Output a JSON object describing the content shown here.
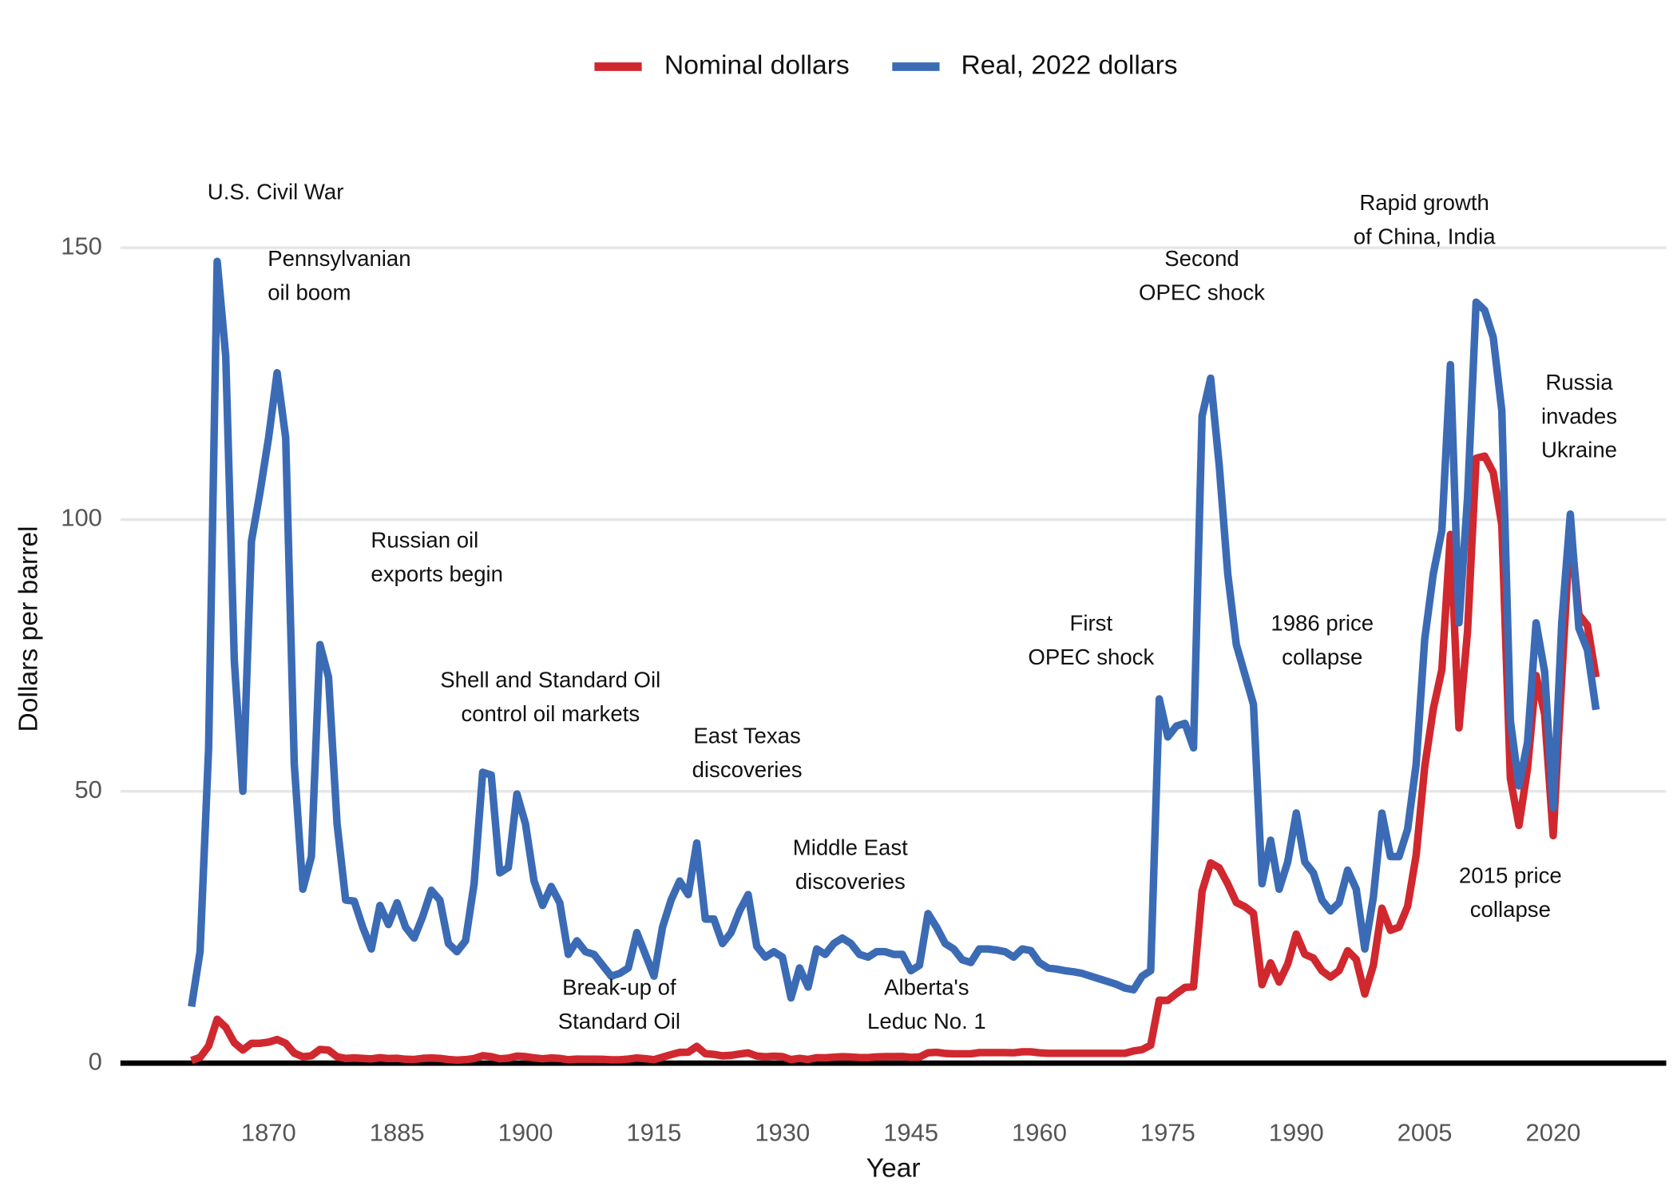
{
  "chart_data": {
    "type": "line",
    "x_label": "Year",
    "y_label": "Dollars per barrel",
    "legend": "top",
    "grid": true,
    "xlim": [
      1852.7,
      2033.2
    ],
    "ylim": [
      -3,
      158
    ],
    "xticks": [
      1870,
      1885,
      1900,
      1915,
      1930,
      1945,
      1960,
      1975,
      1990,
      2005,
      2020
    ],
    "yticks": [
      0,
      50,
      100,
      150
    ],
    "x": [
      1861,
      1862,
      1863,
      1864,
      1865,
      1866,
      1867,
      1868,
      1869,
      1870,
      1871,
      1872,
      1873,
      1874,
      1875,
      1876,
      1877,
      1878,
      1879,
      1880,
      1881,
      1882,
      1883,
      1884,
      1885,
      1886,
      1887,
      1888,
      1889,
      1890,
      1891,
      1892,
      1893,
      1894,
      1895,
      1896,
      1897,
      1898,
      1899,
      1900,
      1901,
      1902,
      1903,
      1904,
      1905,
      1906,
      1907,
      1908,
      1909,
      1910,
      1911,
      1912,
      1913,
      1914,
      1915,
      1916,
      1917,
      1918,
      1919,
      1920,
      1921,
      1922,
      1923,
      1924,
      1925,
      1926,
      1927,
      1928,
      1929,
      1930,
      1931,
      1932,
      1933,
      1934,
      1935,
      1936,
      1937,
      1938,
      1939,
      1940,
      1941,
      1942,
      1943,
      1944,
      1945,
      1946,
      1947,
      1948,
      1949,
      1950,
      1951,
      1952,
      1953,
      1954,
      1955,
      1956,
      1957,
      1958,
      1959,
      1960,
      1961,
      1962,
      1963,
      1964,
      1965,
      1966,
      1967,
      1968,
      1969,
      1970,
      1971,
      1972,
      1973,
      1974,
      1975,
      1976,
      1977,
      1978,
      1979,
      1980,
      1981,
      1982,
      1983,
      1984,
      1985,
      1986,
      1987,
      1988,
      1989,
      1990,
      1991,
      1992,
      1993,
      1994,
      1995,
      1996,
      1997,
      1998,
      1999,
      2000,
      2001,
      2002,
      2003,
      2004,
      2005,
      2006,
      2007,
      2008,
      2009,
      2010,
      2011,
      2012,
      2013,
      2014,
      2015,
      2016,
      2017,
      2018,
      2019,
      2020,
      2021,
      2022,
      2023,
      2024,
      2025
    ],
    "series": [
      {
        "name": "Nominal dollars",
        "color": "#d0282e",
        "values": [
          0.49,
          1.05,
          3.15,
          8.06,
          6.59,
          3.74,
          2.41,
          3.63,
          3.64,
          3.86,
          4.34,
          3.64,
          1.83,
          1.17,
          1.35,
          2.52,
          2.38,
          1.17,
          0.86,
          0.95,
          0.86,
          0.78,
          1.0,
          0.84,
          0.88,
          0.71,
          0.67,
          0.88,
          0.94,
          0.87,
          0.67,
          0.56,
          0.64,
          0.84,
          1.36,
          1.18,
          0.79,
          0.91,
          1.29,
          1.19,
          0.96,
          0.8,
          0.94,
          0.86,
          0.62,
          0.73,
          0.72,
          0.72,
          0.7,
          0.61,
          0.61,
          0.74,
          0.95,
          0.81,
          0.64,
          1.1,
          1.56,
          1.98,
          2.01,
          3.07,
          1.73,
          1.61,
          1.34,
          1.43,
          1.68,
          1.88,
          1.3,
          1.17,
          1.27,
          1.19,
          0.65,
          0.87,
          0.67,
          1.0,
          0.97,
          1.09,
          1.18,
          1.13,
          1.02,
          1.02,
          1.14,
          1.19,
          1.2,
          1.21,
          1.05,
          1.12,
          1.9,
          1.99,
          1.78,
          1.71,
          1.71,
          1.71,
          1.93,
          1.93,
          1.93,
          1.93,
          1.9,
          2.08,
          2.08,
          1.9,
          1.8,
          1.8,
          1.8,
          1.8,
          1.8,
          1.8,
          1.8,
          1.8,
          1.8,
          1.8,
          2.24,
          2.48,
          3.29,
          11.58,
          11.53,
          12.8,
          13.92,
          14.02,
          31.61,
          36.83,
          35.93,
          32.97,
          29.55,
          28.78,
          27.56,
          14.43,
          18.44,
          14.92,
          18.23,
          23.73,
          20.0,
          19.32,
          16.97,
          15.82,
          17.02,
          20.67,
          19.09,
          12.72,
          17.97,
          28.5,
          24.44,
          25.02,
          28.83,
          38.27,
          54.52,
          65.14,
          72.39,
          97.26,
          61.67,
          79.5,
          111.26,
          111.67,
          108.66,
          98.95,
          52.39,
          43.73,
          54.19,
          71.31,
          64.21,
          41.84,
          70.91,
          99.04,
          82.49,
          80.5,
          71
        ]
      },
      {
        "name": "Real, 2022 dollars",
        "color": "#3b6bb5",
        "values": [
          10.4,
          20.5,
          58,
          147.5,
          130,
          74,
          50,
          96,
          105,
          115,
          127,
          115,
          55,
          32,
          38,
          77,
          71,
          44,
          30,
          29.8,
          25,
          21,
          29,
          25.5,
          29.5,
          25,
          23,
          27,
          31.8,
          30,
          22,
          20.5,
          22.5,
          33,
          53.5,
          53,
          35,
          36,
          49.5,
          44,
          33.5,
          29,
          32.5,
          29.5,
          20,
          22.5,
          20.5,
          20,
          18,
          16,
          16.5,
          17.5,
          24,
          20,
          16,
          25,
          30,
          33.5,
          31,
          40.5,
          26.5,
          26.5,
          22,
          24,
          28,
          31,
          21.5,
          19.5,
          20.5,
          19.5,
          12,
          17.5,
          14,
          21,
          20,
          22,
          23,
          22,
          20,
          19.5,
          20.5,
          20.5,
          20,
          20,
          17,
          18,
          27.5,
          25,
          22,
          21,
          19,
          18.5,
          21,
          21,
          20.8,
          20.5,
          19.5,
          21,
          20.7,
          18.5,
          17.5,
          17.3,
          17,
          16.8,
          16.5,
          16,
          15.5,
          15,
          14.5,
          13.8,
          13.5,
          16,
          17,
          67,
          60,
          62,
          62.5,
          58,
          119,
          126,
          110,
          90,
          77,
          71.5,
          66,
          33,
          41,
          32,
          37,
          46,
          37,
          35,
          30,
          28,
          29.5,
          35.5,
          32,
          21,
          30.5,
          46,
          38,
          38,
          43,
          55,
          78,
          90,
          98,
          128.5,
          81,
          104,
          140,
          138.5,
          133.5,
          120,
          63,
          51,
          59,
          81,
          72,
          47,
          81,
          101,
          80,
          76,
          65
        ]
      }
    ],
    "annotations": [
      [
        "U.S. Civil War"
      ],
      [
        "Pennsylvanian",
        "oil boom"
      ],
      [
        "Russian oil",
        "exports begin"
      ],
      [
        "Shell and Standard Oil",
        "control oil markets"
      ],
      [
        "East Texas",
        "discoveries"
      ],
      [
        "Break-up of",
        "Standard Oil"
      ],
      [
        "Middle East",
        "discoveries"
      ],
      [
        "Alberta's",
        "Leduc No. 1"
      ],
      [
        "First",
        "OPEC shock"
      ],
      [
        "Second",
        "OPEC shock"
      ],
      [
        "1986 price",
        "collapse"
      ],
      [
        "Rapid growth",
        "of China, India"
      ],
      [
        "Russia",
        "invades",
        "Ukraine"
      ],
      [
        "2015 price",
        "collapse"
      ]
    ]
  }
}
